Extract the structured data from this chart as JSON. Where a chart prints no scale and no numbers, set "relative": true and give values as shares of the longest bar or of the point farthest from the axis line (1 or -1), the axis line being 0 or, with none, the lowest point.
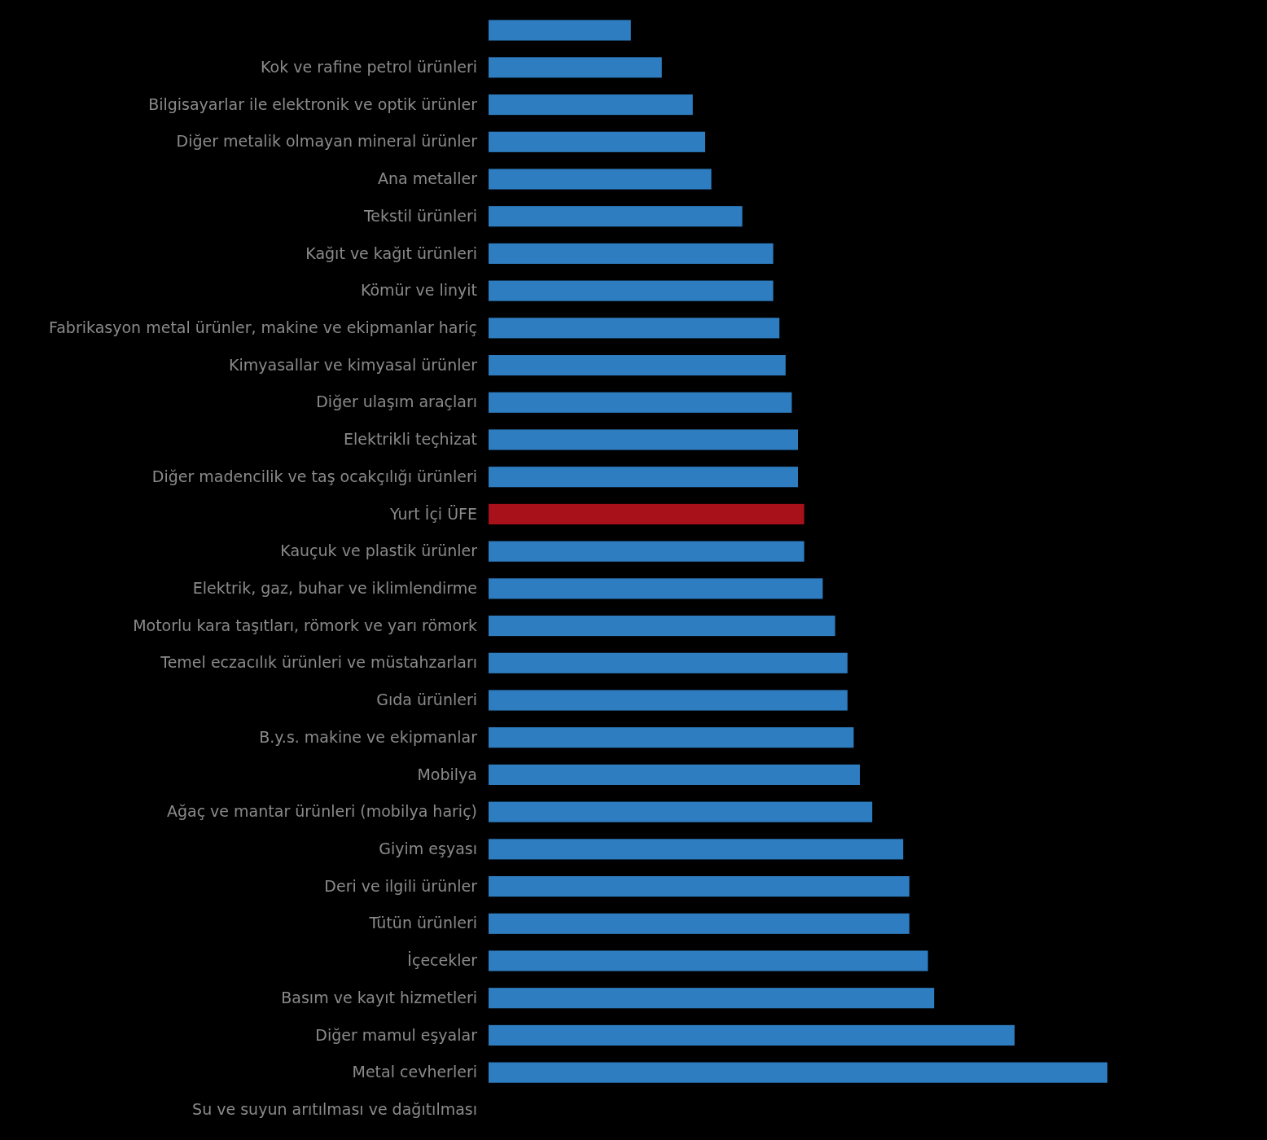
{
  "chart_data": {
    "type": "bar",
    "orientation": "horizontal",
    "relative": true,
    "categories": [
      null,
      "Kok ve rafine petrol ürünleri",
      "Bilgisayarlar ile elektronik ve optik ürünler",
      "Diğer metalik olmayan mineral ürünler",
      "Ana metaller",
      "Tekstil ürünleri",
      "Kağıt ve kağıt ürünleri",
      "Kömür ve linyit",
      "Fabrikasyon metal ürünler, makine ve ekipmanlar hariç",
      "Kimyasallar ve kimyasal ürünler",
      "Diğer ulaşım araçları",
      "Elektrikli teçhizat",
      "Diğer madencilik ve taş ocakçılığı ürünleri",
      "Yurt İçi ÜFE",
      "Kauçuk ve plastik ürünler",
      "Elektrik, gaz, buhar ve iklimlendirme",
      "Motorlu kara taşıtları, römork ve yarı römork",
      "Temel eczacılık ürünleri ve müstahzarları",
      "Gıda ürünleri",
      "B.y.s. makine ve ekipmanlar",
      "Mobilya",
      "Ağaç ve mantar ürünleri (mobilya hariç)",
      "Giyim eşyası",
      "Deri ve ilgili ürünler",
      "Tütün ürünleri",
      "İçecekler",
      "Basım ve kayıt hizmetleri",
      "Diğer mamul eşyalar",
      "Metal cevherleri",
      "Su ve suyun arıtılması ve dağıtılması"
    ],
    "values": [
      0.23,
      0.28,
      0.33,
      0.35,
      0.36,
      0.41,
      0.46,
      0.46,
      0.47,
      0.48,
      0.49,
      0.5,
      0.5,
      0.51,
      0.51,
      0.54,
      0.56,
      0.58,
      0.58,
      0.59,
      0.6,
      0.62,
      0.67,
      0.68,
      0.68,
      0.71,
      0.72,
      0.85,
      1,
      null
    ],
    "colors": [
      "#2e7dc0",
      "#2e7dc0",
      "#2e7dc0",
      "#2e7dc0",
      "#2e7dc0",
      "#2e7dc0",
      "#2e7dc0",
      "#2e7dc0",
      "#2e7dc0",
      "#2e7dc0",
      "#2e7dc0",
      "#2e7dc0",
      "#2e7dc0",
      "#a8111a",
      "#2e7dc0",
      "#2e7dc0",
      "#2e7dc0",
      "#2e7dc0",
      "#2e7dc0",
      "#2e7dc0",
      "#2e7dc0",
      "#2e7dc0",
      "#2e7dc0",
      "#2e7dc0",
      "#2e7dc0",
      "#2e7dc0",
      "#2e7dc0",
      "#2e7dc0",
      "#2e7dc0",
      "#2e7dc0"
    ]
  }
}
